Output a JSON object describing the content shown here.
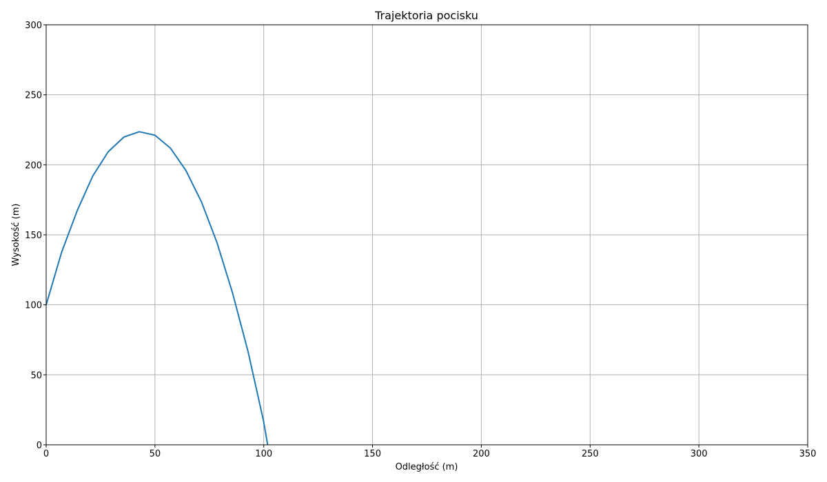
{
  "chart_data": {
    "type": "line",
    "title": "Trajektoria pocisku",
    "xlabel": "Odległość (m)",
    "ylabel": "Wysokość (m)",
    "xlim": [
      0,
      350
    ],
    "ylim": [
      0,
      300
    ],
    "xticks": [
      0,
      50,
      100,
      150,
      200,
      250,
      300,
      350
    ],
    "yticks": [
      0,
      50,
      100,
      150,
      200,
      250,
      300
    ],
    "grid": true,
    "line_color": "#1f77b4",
    "series": [
      {
        "x": [
          0,
          7.1,
          14.3,
          21.4,
          28.5,
          35.7,
          42.8,
          50.0,
          57.1,
          64.2,
          71.4,
          78.5,
          85.6,
          92.8,
          99.9,
          101.8
        ],
        "y": [
          100,
          137.5,
          167.3,
          192.0,
          209.3,
          219.8,
          223.6,
          221.1,
          211.9,
          196.0,
          173.4,
          144.5,
          108.7,
          66.5,
          17.0,
          0
        ]
      }
    ]
  }
}
